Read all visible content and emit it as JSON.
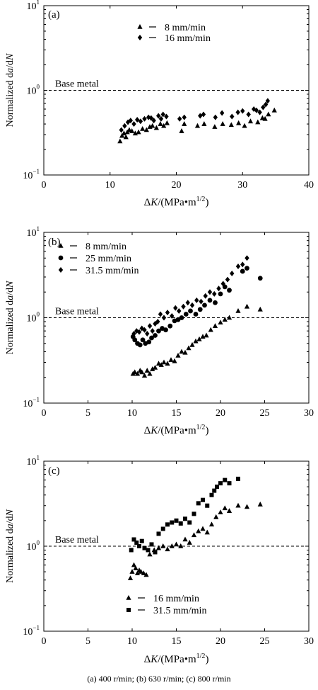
{
  "caption": "(a)  400  r/min;  (b) 630 r/min; (c) 800 r/min",
  "chart_data": [
    {
      "type": "scatter",
      "panel_label": "(a)",
      "ylabel_main": "Normalized d",
      "ylabel_a": "a",
      "ylabel_mid": "/d",
      "ylabel_N": "N",
      "xlabel_delta": "Δ",
      "xlabel_K": "K",
      "xlabel_rest": "/(MPa•m",
      "xlabel_exp": "1/2",
      "xlabel_close": ")",
      "yscale": "log",
      "xlim": [
        0,
        40
      ],
      "ylim": [
        0.1,
        10
      ],
      "xticks": [
        "0",
        "10",
        "20",
        "30",
        "40"
      ],
      "yticks": [
        {
          "base": "10",
          "exp": "−1"
        },
        {
          "base": "10",
          "exp": "0"
        },
        {
          "base": "10",
          "exp": "1"
        }
      ],
      "grid": false,
      "legend_position": "top-center",
      "reference_line": {
        "label": "Base metal",
        "y": 1.0
      },
      "series": [
        {
          "name": "8 mm/min",
          "marker": "triangle",
          "x": [
            11.5,
            11.8,
            12.1,
            12.4,
            12.6,
            12.9,
            13.3,
            13.8,
            14.3,
            14.9,
            15.5,
            16.0,
            16.4,
            17.0,
            17.6,
            18.1,
            18.6,
            20.8,
            21.2,
            23.2,
            24.2,
            25.8,
            27.0,
            28.3,
            29.4,
            30.3,
            31.2,
            32.3,
            33.0,
            33.4,
            33.9,
            34.8
          ],
          "y": [
            0.25,
            0.29,
            0.31,
            0.28,
            0.32,
            0.34,
            0.33,
            0.31,
            0.32,
            0.35,
            0.34,
            0.37,
            0.38,
            0.36,
            0.4,
            0.38,
            0.41,
            0.33,
            0.4,
            0.38,
            0.4,
            0.37,
            0.4,
            0.39,
            0.41,
            0.38,
            0.43,
            0.42,
            0.47,
            0.46,
            0.52,
            0.58
          ]
        },
        {
          "name": "16 mm/min",
          "marker": "diamond",
          "x": [
            11.7,
            12.2,
            12.7,
            13.1,
            13.6,
            14.1,
            14.6,
            15.2,
            15.8,
            16.2,
            16.6,
            17.3,
            17.7,
            18.0,
            18.5,
            20.5,
            21.2,
            23.6,
            24.1,
            25.9,
            26.9,
            28.4,
            29.3,
            30.0,
            30.9,
            31.7,
            32.1,
            32.6,
            33.1,
            33.5,
            33.8
          ],
          "y": [
            0.34,
            0.38,
            0.42,
            0.44,
            0.4,
            0.45,
            0.43,
            0.46,
            0.48,
            0.47,
            0.44,
            0.5,
            0.46,
            0.52,
            0.49,
            0.46,
            0.48,
            0.5,
            0.52,
            0.48,
            0.54,
            0.49,
            0.55,
            0.57,
            0.52,
            0.6,
            0.58,
            0.55,
            0.63,
            0.68,
            0.75
          ]
        }
      ]
    },
    {
      "type": "scatter",
      "panel_label": "(b)",
      "ylabel_main": "Normalized d",
      "ylabel_a": "a",
      "ylabel_mid": "/d",
      "ylabel_N": "N",
      "xlabel_delta": "Δ",
      "xlabel_K": "K",
      "xlabel_rest": "/(MPa•m",
      "xlabel_exp": "1/2",
      "xlabel_close": ")",
      "yscale": "log",
      "xlim": [
        0,
        30
      ],
      "ylim": [
        0.1,
        10
      ],
      "xticks": [
        "0",
        "5",
        "10",
        "15",
        "20",
        "25",
        "30"
      ],
      "yticks": [
        {
          "base": "10",
          "exp": "−1"
        },
        {
          "base": "10",
          "exp": "0"
        },
        {
          "base": "10",
          "exp": "1"
        }
      ],
      "grid": false,
      "legend_position": "top-left",
      "reference_line": {
        "label": "Base metal",
        "y": 1.0
      },
      "series": [
        {
          "name": "8 mm/min",
          "marker": "triangle",
          "x": [
            10.1,
            10.3,
            10.6,
            10.9,
            11.1,
            11.4,
            11.7,
            12.0,
            12.3,
            12.6,
            13.0,
            13.3,
            13.6,
            14.0,
            14.4,
            14.8,
            15.2,
            15.6,
            16.0,
            16.4,
            16.8,
            17.2,
            17.6,
            18.0,
            18.4,
            18.9,
            19.4,
            20.0,
            20.5,
            21.0,
            22.0,
            23.0,
            24.5
          ],
          "y": [
            0.22,
            0.23,
            0.22,
            0.24,
            0.23,
            0.21,
            0.24,
            0.22,
            0.25,
            0.26,
            0.29,
            0.28,
            0.3,
            0.29,
            0.32,
            0.31,
            0.36,
            0.4,
            0.39,
            0.44,
            0.48,
            0.53,
            0.56,
            0.6,
            0.62,
            0.72,
            0.8,
            0.88,
            0.95,
            1.0,
            1.2,
            1.35,
            1.25
          ]
        },
        {
          "name": "25 mm/min",
          "marker": "circle",
          "x": [
            10.1,
            10.3,
            10.6,
            10.9,
            11.2,
            11.5,
            11.9,
            12.2,
            12.6,
            13.0,
            13.4,
            13.8,
            14.3,
            14.8,
            15.2,
            15.6,
            16.1,
            16.6,
            17.2,
            17.7,
            18.2,
            18.8,
            19.4,
            20.0,
            20.5,
            21.0,
            22.5,
            23.0,
            24.5
          ],
          "y": [
            0.6,
            0.55,
            0.5,
            0.48,
            0.55,
            0.5,
            0.52,
            0.58,
            0.62,
            0.7,
            0.75,
            0.72,
            0.8,
            0.92,
            0.95,
            1.0,
            1.1,
            1.2,
            1.1,
            1.25,
            1.4,
            1.6,
            1.5,
            1.9,
            2.3,
            2.1,
            3.5,
            3.8,
            2.9
          ]
        },
        {
          "name": "31.5 mm/min",
          "marker": "diamond",
          "x": [
            10.2,
            10.5,
            10.8,
            11.1,
            11.4,
            11.7,
            12.0,
            12.3,
            12.6,
            12.9,
            13.2,
            13.6,
            14.0,
            14.5,
            14.9,
            15.3,
            15.8,
            16.3,
            16.8,
            17.3,
            17.8,
            18.3,
            18.8,
            19.3,
            19.8,
            20.3,
            20.8,
            21.3,
            22.0,
            22.5,
            23.0
          ],
          "y": [
            0.65,
            0.7,
            0.68,
            0.75,
            0.72,
            0.65,
            0.8,
            0.7,
            0.85,
            0.9,
            1.1,
            1.0,
            1.15,
            1.05,
            1.3,
            1.2,
            1.35,
            1.5,
            1.4,
            1.6,
            1.55,
            1.8,
            2.0,
            1.9,
            2.2,
            2.5,
            2.8,
            3.3,
            4.0,
            4.2,
            5.0
          ]
        }
      ]
    },
    {
      "type": "scatter",
      "panel_label": "(c)",
      "ylabel_main": "Normalized d",
      "ylabel_a": "a",
      "ylabel_mid": "/d",
      "ylabel_N": "N",
      "xlabel_delta": "Δ",
      "xlabel_K": "K",
      "xlabel_rest": "/(MPa•m",
      "xlabel_exp": "1/2",
      "xlabel_close": ")",
      "yscale": "log",
      "xlim": [
        0,
        30
      ],
      "ylim": [
        0.1,
        10
      ],
      "xticks": [
        "0",
        "5",
        "10",
        "15",
        "20",
        "25",
        "30"
      ],
      "yticks": [
        {
          "base": "10",
          "exp": "−1"
        },
        {
          "base": "10",
          "exp": "0"
        },
        {
          "base": "10",
          "exp": "1"
        }
      ],
      "grid": false,
      "legend_position": "bottom-left",
      "reference_line": {
        "label": "Base metal",
        "y": 1.0
      },
      "series": [
        {
          "name": "16 mm/min",
          "marker": "triangle",
          "x": [
            9.8,
            10.0,
            10.2,
            10.4,
            10.6,
            10.8,
            11.0,
            11.3,
            11.6,
            12.0,
            12.5,
            13.0,
            13.5,
            14.0,
            14.5,
            15.0,
            15.5,
            16.0,
            16.5,
            17.0,
            17.5,
            18.0,
            18.5,
            19.0,
            19.5,
            20.0,
            20.5,
            21.0,
            22.0,
            23.0,
            24.5
          ],
          "y": [
            0.42,
            0.5,
            0.6,
            0.55,
            0.48,
            0.52,
            0.5,
            0.48,
            0.46,
            0.8,
            0.9,
            0.95,
            1.0,
            0.92,
            1.0,
            1.05,
            1.0,
            1.2,
            1.1,
            1.35,
            1.5,
            1.6,
            1.45,
            1.8,
            2.2,
            2.5,
            2.8,
            2.6,
            3.0,
            2.9,
            3.1
          ]
        },
        {
          "name": "31.5 mm/min",
          "marker": "square",
          "x": [
            9.9,
            10.2,
            10.5,
            10.8,
            11.1,
            11.4,
            11.8,
            12.2,
            12.6,
            13.0,
            13.5,
            14.0,
            14.5,
            15.0,
            15.5,
            16.0,
            16.5,
            17.0,
            17.5,
            18.0,
            18.5,
            19.0,
            19.3,
            19.6,
            20.0,
            20.5,
            21.0,
            22.0
          ],
          "y": [
            0.9,
            1.2,
            1.1,
            1.0,
            1.15,
            0.95,
            0.9,
            1.05,
            0.85,
            1.4,
            1.6,
            1.8,
            1.9,
            2.0,
            1.85,
            2.1,
            1.9,
            2.4,
            3.2,
            3.5,
            3.0,
            4.0,
            4.5,
            5.0,
            5.5,
            6.0,
            5.5,
            6.2
          ]
        }
      ]
    }
  ]
}
